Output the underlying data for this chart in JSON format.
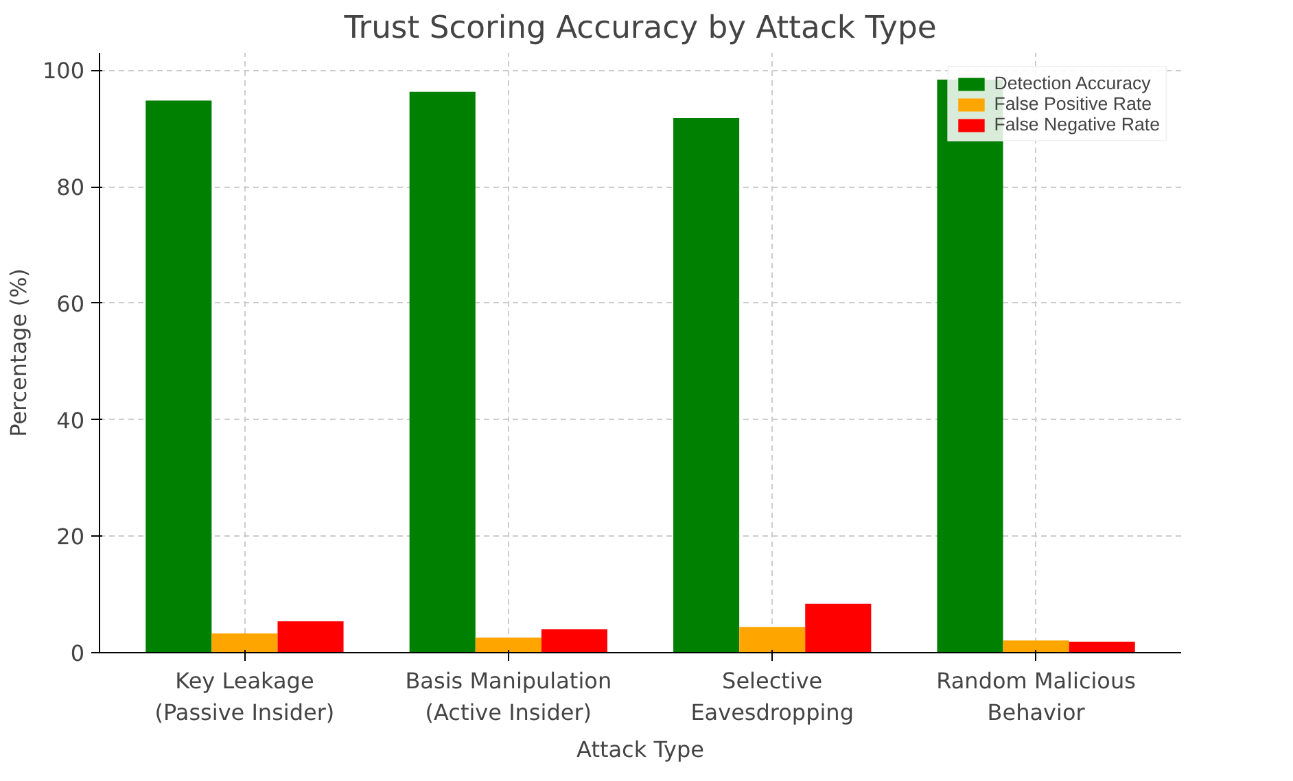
{
  "chart_data": {
    "type": "bar",
    "title": "Trust Scoring Accuracy by Attack Type",
    "xlabel": "Attack Type",
    "ylabel": "Percentage (%)",
    "categories": [
      "Key Leakage (Passive Insider)",
      "Basis Manipulation (Active Insider)",
      "Selective Eavesdropping",
      "Random Malicious Behavior"
    ],
    "series": [
      {
        "name": "Detection Accuracy",
        "color": "#008000",
        "values": [
          94.8,
          96.3,
          91.8,
          98.4
        ]
      },
      {
        "name": "False Positive Rate",
        "color": "#ffa500",
        "values": [
          3.3,
          2.6,
          4.4,
          2.1
        ]
      },
      {
        "name": "False Negative Rate",
        "color": "#ff0000",
        "values": [
          5.4,
          4.0,
          8.4,
          1.9
        ]
      }
    ],
    "ylim": [
      0,
      103
    ],
    "yticks": [
      0,
      20,
      40,
      60,
      80,
      100
    ],
    "grid": true,
    "legend": "top right"
  }
}
